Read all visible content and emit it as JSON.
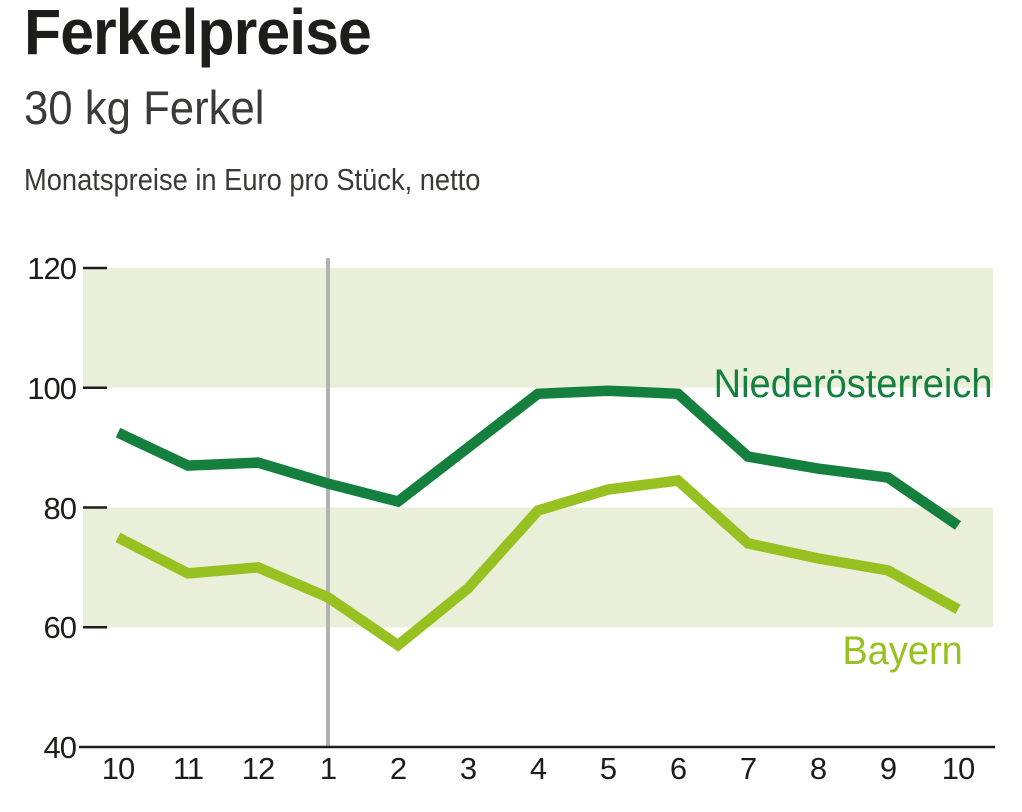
{
  "header": {
    "title": "Ferkelpreise",
    "subtitle": "30 kg Ferkel",
    "note": "Monatspreise in Euro pro Stück, netto"
  },
  "chart_data": {
    "type": "line",
    "x_tick_labels": [
      "10",
      "11",
      "12",
      "1",
      "2",
      "3",
      "4",
      "5",
      "6",
      "7",
      "8",
      "9",
      "10"
    ],
    "xlabel": "",
    "ylabel": "",
    "ylim": [
      40,
      120
    ],
    "y_ticks": [
      120,
      100,
      80,
      60,
      40
    ],
    "grid": "off",
    "legend_position": "inline-right-of-lines",
    "shaded_bands": [
      [
        100,
        120
      ],
      [
        60,
        80
      ]
    ],
    "band_color": "#e9efd8",
    "axis_color": "#1d1d1b",
    "reference_line_month": "1",
    "reference_line_color": "#b2b2b4",
    "series": [
      {
        "name": "Niederösterreich",
        "color": "#15803e",
        "values": [
          92.5,
          87,
          87.5,
          84,
          81,
          90,
          99,
          99.5,
          99,
          88.5,
          86.5,
          85,
          77
        ]
      },
      {
        "name": "Bayern",
        "color": "#96c121",
        "values": [
          75,
          69,
          70,
          65,
          57,
          66.5,
          79.5,
          83,
          84.5,
          74,
          71.5,
          69.5,
          63
        ]
      }
    ]
  }
}
